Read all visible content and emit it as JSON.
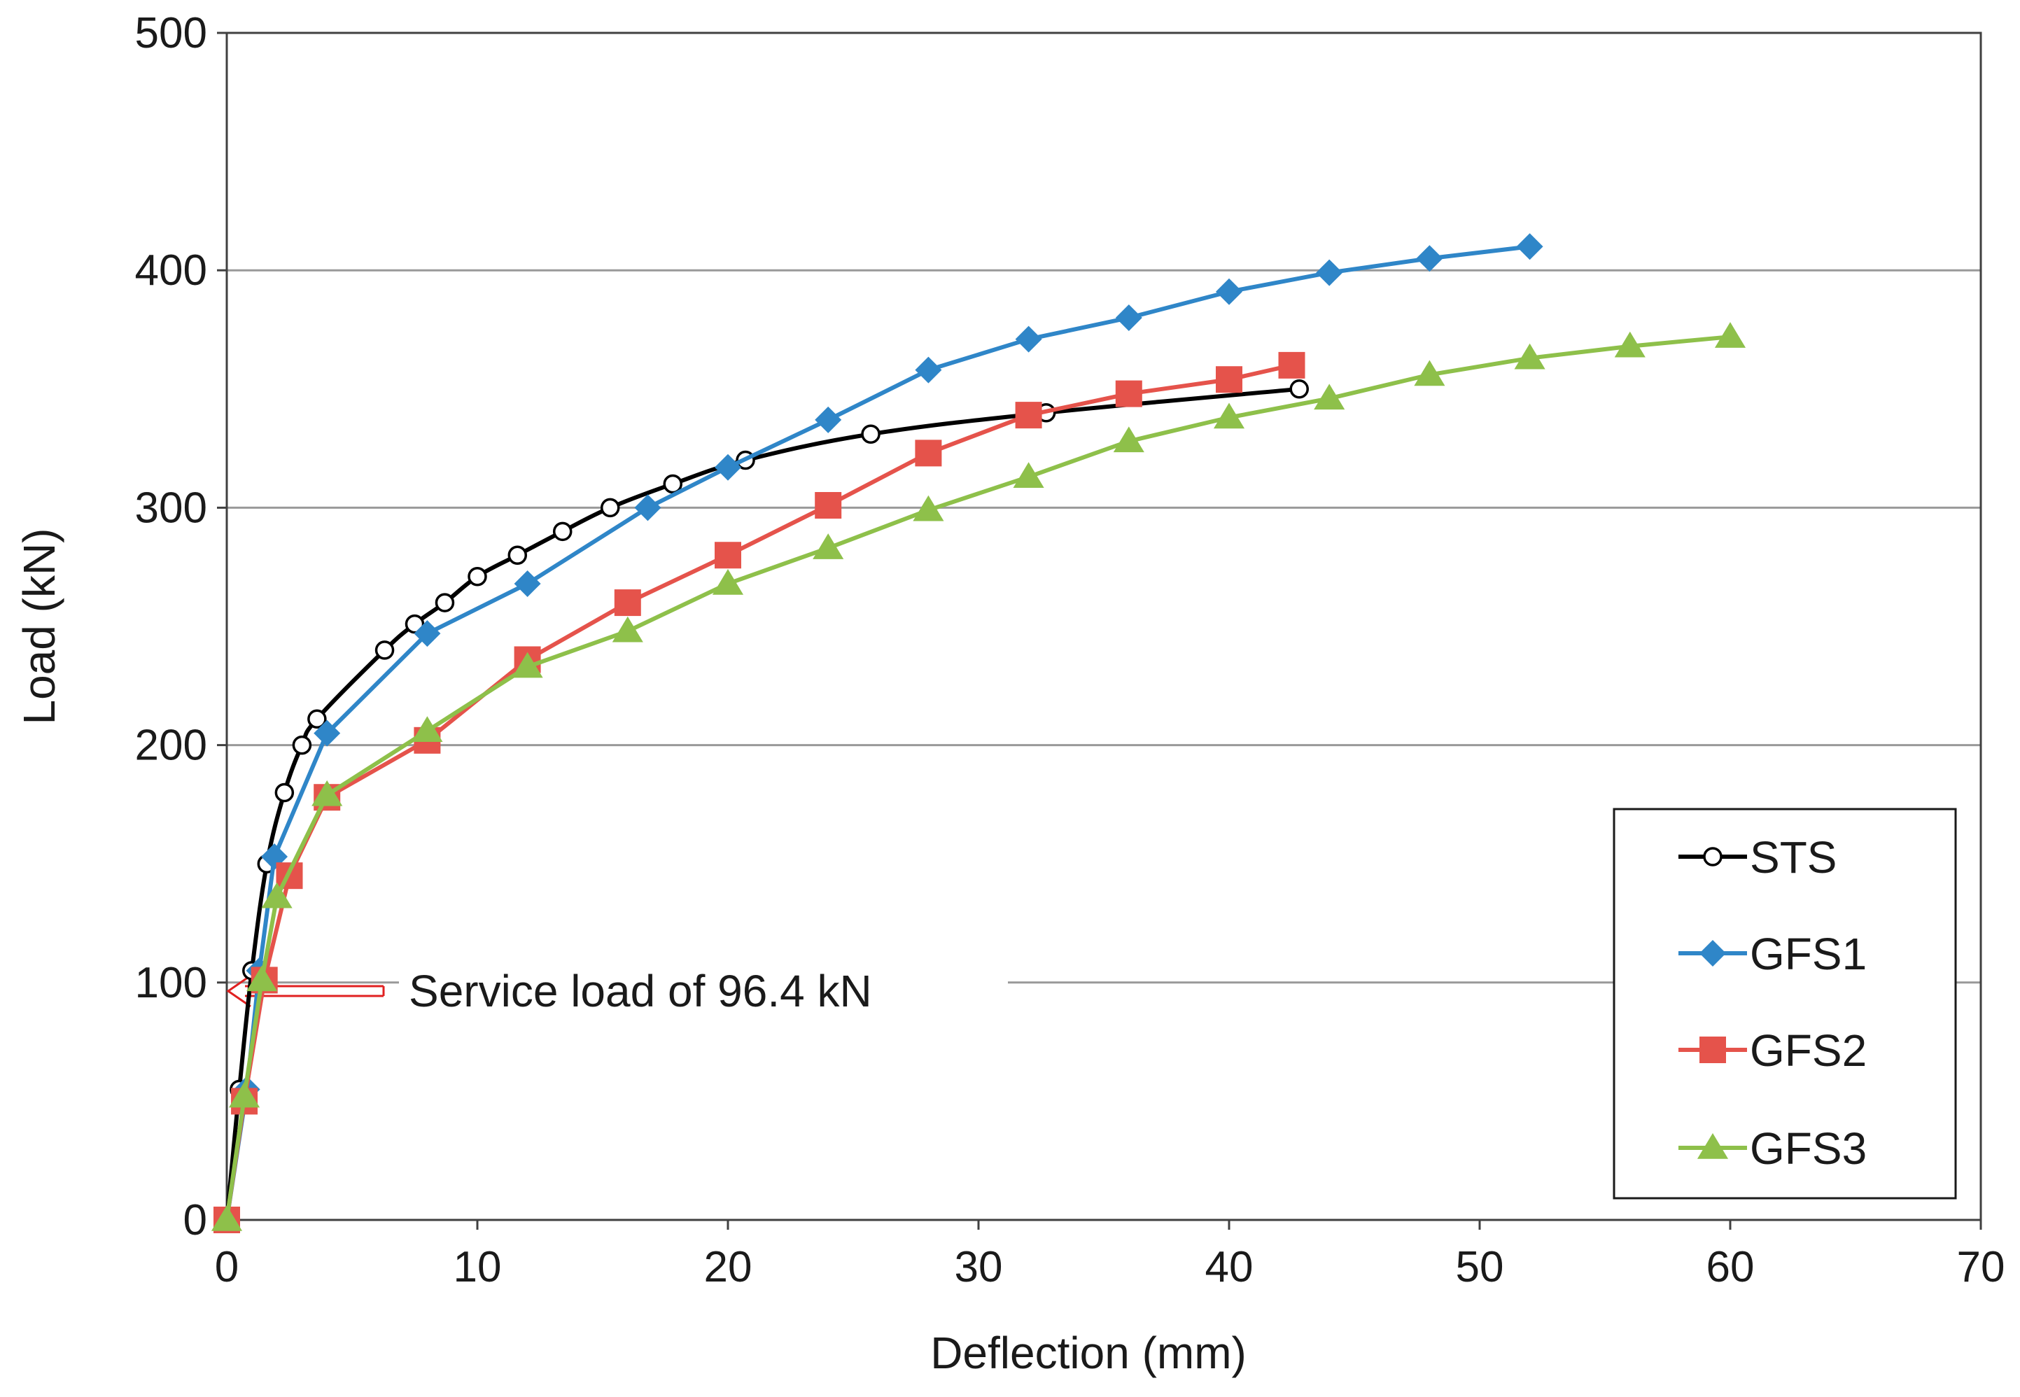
{
  "chart_data": {
    "type": "line",
    "title": "",
    "xlabel": "Deflection (mm)",
    "ylabel": "Load (kN)",
    "xlim": [
      0,
      70
    ],
    "ylim": [
      0,
      500
    ],
    "xticks": [
      "0",
      "10",
      "20",
      "30",
      "40",
      "50",
      "60",
      "70"
    ],
    "yticks": [
      "0",
      "100",
      "200",
      "300",
      "400",
      "500"
    ],
    "grid": "horizontal",
    "legend_position": "bottom-right",
    "annotation": {
      "text": "Service load of 96.4 kN",
      "load": 96.4
    },
    "series": [
      {
        "name": "STS",
        "color": "#000000",
        "marker": "open-circle",
        "smooth": true,
        "points": [
          [
            0,
            0
          ],
          [
            0.5,
            55
          ],
          [
            1,
            105
          ],
          [
            1.6,
            150
          ],
          [
            2.3,
            180
          ],
          [
            3,
            200
          ],
          [
            3.6,
            211
          ],
          [
            6.3,
            240
          ],
          [
            7.5,
            251
          ],
          [
            8.7,
            260
          ],
          [
            10,
            271
          ],
          [
            11.6,
            280
          ],
          [
            13.4,
            290
          ],
          [
            15.3,
            300
          ],
          [
            17.8,
            310
          ],
          [
            20.7,
            320
          ],
          [
            25.7,
            331
          ],
          [
            32.7,
            340
          ],
          [
            42.8,
            350
          ]
        ]
      },
      {
        "name": "GFS1",
        "color": "#2f86c8",
        "marker": "diamond",
        "smooth": false,
        "points": [
          [
            0,
            0
          ],
          [
            0.8,
            55
          ],
          [
            1.3,
            105
          ],
          [
            1.9,
            153
          ],
          [
            4.0,
            205
          ],
          [
            8.0,
            247
          ],
          [
            12.0,
            268
          ],
          [
            16.8,
            300
          ],
          [
            20.0,
            317
          ],
          [
            24.0,
            337
          ],
          [
            28.0,
            358
          ],
          [
            32.0,
            371
          ],
          [
            36.0,
            380
          ],
          [
            40.0,
            391
          ],
          [
            44.0,
            399
          ],
          [
            48.0,
            405
          ],
          [
            52.0,
            410
          ]
        ]
      },
      {
        "name": "GFS2",
        "color": "#e5534b",
        "marker": "square",
        "smooth": false,
        "points": [
          [
            0,
            0
          ],
          [
            0.7,
            50
          ],
          [
            1.5,
            101
          ],
          [
            2.5,
            145
          ],
          [
            4.0,
            178
          ],
          [
            8.0,
            202
          ],
          [
            12.0,
            236
          ],
          [
            16.0,
            260
          ],
          [
            20.0,
            280
          ],
          [
            24.0,
            301
          ],
          [
            28.0,
            323
          ],
          [
            32.0,
            339
          ],
          [
            36.0,
            348
          ],
          [
            40.0,
            354
          ],
          [
            42.5,
            360
          ]
        ]
      },
      {
        "name": "GFS3",
        "color": "#8ec04a",
        "marker": "triangle",
        "smooth": false,
        "points": [
          [
            0,
            0
          ],
          [
            0.7,
            52
          ],
          [
            1.4,
            101
          ],
          [
            2.0,
            136
          ],
          [
            4.0,
            179
          ],
          [
            8.0,
            206
          ],
          [
            12.0,
            233
          ],
          [
            16.0,
            248
          ],
          [
            20.0,
            268
          ],
          [
            24.0,
            283
          ],
          [
            28.0,
            299
          ],
          [
            32.0,
            313
          ],
          [
            36.0,
            328
          ],
          [
            40.0,
            338
          ],
          [
            44.0,
            346
          ],
          [
            48.0,
            356
          ],
          [
            52.0,
            363
          ],
          [
            56.0,
            368
          ],
          [
            60.0,
            372
          ]
        ]
      }
    ]
  }
}
